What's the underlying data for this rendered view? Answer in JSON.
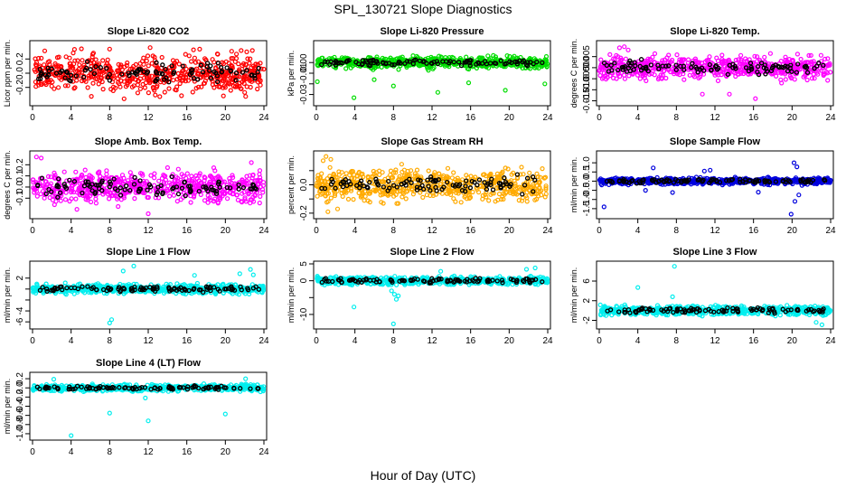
{
  "figure": {
    "title": "SPL_130721  Slope Diagnostics",
    "xlabel": "Hour of Day (UTC)"
  },
  "chart_data": [
    {
      "type": "scatter",
      "title": "Slope Li-820 CO2",
      "ylabel": "Licor ppm per min.",
      "xlim": [
        0,
        24
      ],
      "xticks": [
        0,
        4,
        8,
        12,
        16,
        20,
        24
      ],
      "ylim": [
        -0.42,
        0.42
      ],
      "yticks": [
        -0.2,
        0.0,
        0.2
      ],
      "ytick_labels": [
        "-0.2",
        "0.0",
        "0.2"
      ],
      "color": "#ff0000",
      "spread": 0.17,
      "extra_x": [
        8.0,
        9.5,
        12.2,
        13.2,
        16.7,
        19.8,
        22.8
      ],
      "extra_y": [
        0.34,
        -0.36,
        0.36,
        -0.33,
        0.33,
        -0.32,
        0.32
      ]
    },
    {
      "type": "scatter",
      "title": "Slope Li-820 Pressure",
      "ylabel": "kPa per min.",
      "xlim": [
        0,
        24
      ],
      "xticks": [
        0,
        4,
        8,
        12,
        16,
        20,
        24
      ],
      "ylim": [
        -0.038,
        0.018
      ],
      "yticks": [
        -0.03,
        -0.02,
        -0.01,
        0.0
      ],
      "ytick_labels": [
        "-0.03",
        "",
        "-0.01",
        "0.00"
      ],
      "color": "#00dd00",
      "spread": 0.0035,
      "extra_x": [
        0.1,
        3.9,
        6.0,
        8.0,
        12.6,
        15.8,
        19.6,
        23.7
      ],
      "extra_y": [
        -0.018,
        -0.033,
        -0.016,
        -0.022,
        -0.028,
        -0.019,
        -0.026,
        -0.02
      ]
    },
    {
      "type": "scatter",
      "title": "Slope Li-820 Temp.",
      "ylabel": "degrees C per min.",
      "xlim": [
        0,
        24
      ],
      "xticks": [
        0,
        4,
        8,
        12,
        16,
        20,
        24
      ],
      "ylim": [
        -0.016,
        0.011
      ],
      "yticks": [
        -0.015,
        -0.01,
        -0.005,
        0.0,
        0.005
      ],
      "ytick_labels": [
        "-0.015",
        "-0.010",
        "-0.005",
        "0.000",
        "0.005"
      ],
      "color": "#ff00ff",
      "spread": 0.0035,
      "extra_x": [
        2.1,
        2.6,
        3.0,
        16.2,
        13.5,
        10.7
      ],
      "extra_y": [
        0.009,
        0.0095,
        0.008,
        -0.014,
        -0.012,
        -0.012
      ]
    },
    {
      "type": "scatter",
      "title": "Slope Amb. Box Temp.",
      "ylabel": "degrees C per min.",
      "xlim": [
        0,
        24
      ],
      "xticks": [
        0,
        4,
        8,
        12,
        16,
        20,
        24
      ],
      "ylim": [
        -0.26,
        0.3
      ],
      "yticks": [
        -0.1,
        0.0,
        0.1,
        0.2
      ],
      "ytick_labels": [
        "-0.1",
        "0.0",
        "0.1",
        "0.2"
      ],
      "color": "#ff00ff",
      "spread": 0.09,
      "extra_x": [
        0.4,
        0.9,
        12.0,
        4.6,
        22.7
      ],
      "extra_y": [
        0.27,
        0.26,
        -0.24,
        -0.2,
        0.22
      ]
    },
    {
      "type": "scatter",
      "title": "Slope Gas Stream RH",
      "ylabel": "percent per min.",
      "xlim": [
        0,
        24
      ],
      "xticks": [
        0,
        4,
        8,
        12,
        16,
        20,
        24
      ],
      "ylim": [
        -0.22,
        0.22
      ],
      "yticks": [
        -0.2,
        -0.1,
        0.0,
        0.1
      ],
      "ytick_labels": [
        "-0.2",
        "",
        "0.0",
        ""
      ],
      "color": "#ffaa00",
      "spread": 0.075,
      "extra_x": [
        1.0,
        1.2,
        0.7,
        2.2,
        1.5
      ],
      "extra_y": [
        0.2,
        -0.19,
        0.17,
        -0.17,
        0.18
      ]
    },
    {
      "type": "scatter",
      "title": "Slope Sample Flow",
      "ylabel": "ml/min per min.",
      "xlim": [
        0,
        24
      ],
      "xticks": [
        0,
        4,
        8,
        12,
        16,
        20,
        24
      ],
      "ylim": [
        -1.9,
        1.5
      ],
      "yticks": [
        -1.5,
        -1.0,
        -0.5,
        0.0,
        0.5,
        1.0
      ],
      "ytick_labels": [
        "-1.5",
        "-1.0",
        "-0.5",
        "0.0",
        "0.5",
        "1.0"
      ],
      "color": "#0000dd",
      "spread": 0.12,
      "extra_x": [
        0.5,
        5.6,
        7.6,
        10.9,
        16.5,
        19.9,
        20.2,
        20.5,
        20.7,
        20.3,
        4.8,
        11.5
      ],
      "extra_y": [
        -1.4,
        0.72,
        -0.62,
        0.55,
        -0.6,
        -1.8,
        1.0,
        0.78,
        -0.75,
        -1.1,
        -0.5,
        0.6
      ]
    },
    {
      "type": "scatter",
      "title": "Slope Line 1 Flow",
      "ylabel": "ml/min per min.",
      "xlim": [
        0,
        24
      ],
      "xticks": [
        0,
        4,
        8,
        12,
        16,
        20,
        24
      ],
      "ylim": [
        -6.8,
        4.6
      ],
      "yticks": [
        -6,
        -4,
        -2,
        0,
        2
      ],
      "ytick_labels": [
        "-6",
        "-4",
        "",
        "",
        "2"
      ],
      "color": "#00eeee",
      "spread": 0.55,
      "extra_x": [
        8.0,
        8.2,
        9.4,
        10.5,
        21.5,
        22.6,
        22.9,
        16.8
      ],
      "extra_y": [
        -6.2,
        -5.6,
        3.3,
        4.2,
        2.8,
        3.6,
        2.6,
        2.5
      ]
    },
    {
      "type": "scatter",
      "title": "Slope Line 2 Flow",
      "ylabel": "ml/min per min.",
      "xlim": [
        0,
        24
      ],
      "xticks": [
        0,
        4,
        8,
        12,
        16,
        20,
        24
      ],
      "ylim": [
        -13.5,
        5.0
      ],
      "yticks": [
        -10,
        -5,
        0,
        5
      ],
      "ytick_labels": [
        "-10",
        "",
        "0",
        "5"
      ],
      "color": "#00eeee",
      "spread": 0.8,
      "extra_x": [
        8.0,
        8.1,
        3.9,
        7.8,
        8.3,
        8.5,
        22.7,
        21.8,
        12.9
      ],
      "extra_y": [
        -12.8,
        -4.0,
        -7.8,
        -3.0,
        -5.5,
        -4.5,
        3.8,
        3.4,
        2.8
      ]
    },
    {
      "type": "scatter",
      "title": "Slope Line 3 Flow",
      "ylabel": "ml/min per min.",
      "xlim": [
        0,
        24
      ],
      "xticks": [
        0,
        4,
        8,
        12,
        16,
        20,
        24
      ],
      "ylim": [
        -3.2,
        9.5
      ],
      "yticks": [
        -2,
        2,
        6
      ],
      "ytick_labels": [
        "-2",
        "2",
        "6"
      ],
      "color": "#00eeee",
      "spread": 0.6,
      "extra_x": [
        4.0,
        7.8,
        22.5,
        23.1,
        7.6
      ],
      "extra_y": [
        4.7,
        9.0,
        -2.4,
        -2.9,
        2.8
      ]
    },
    {
      "type": "scatter",
      "title": "Slope Line 4 (LT) Flow",
      "ylabel": "ml/min per min.",
      "xlim": [
        0,
        24
      ],
      "xticks": [
        0,
        4,
        8,
        12,
        16,
        20,
        24
      ],
      "ylim": [
        -1.08,
        0.28
      ],
      "yticks": [
        -1.0,
        -0.8,
        -0.6,
        -0.4,
        -0.2,
        0.0,
        0.2
      ],
      "ytick_labels": [
        "-1.0",
        "-0.8",
        "-0.6",
        "-0.4",
        "-0.2",
        "0.0",
        "0.2"
      ],
      "color": "#00eeee",
      "spread": 0.045,
      "extra_x": [
        4.0,
        8.0,
        12.0,
        20.0,
        2.2,
        11.7,
        22.1
      ],
      "extra_y": [
        -1.04,
        -0.55,
        -0.72,
        -0.57,
        0.19,
        -0.22,
        0.2
      ]
    }
  ]
}
